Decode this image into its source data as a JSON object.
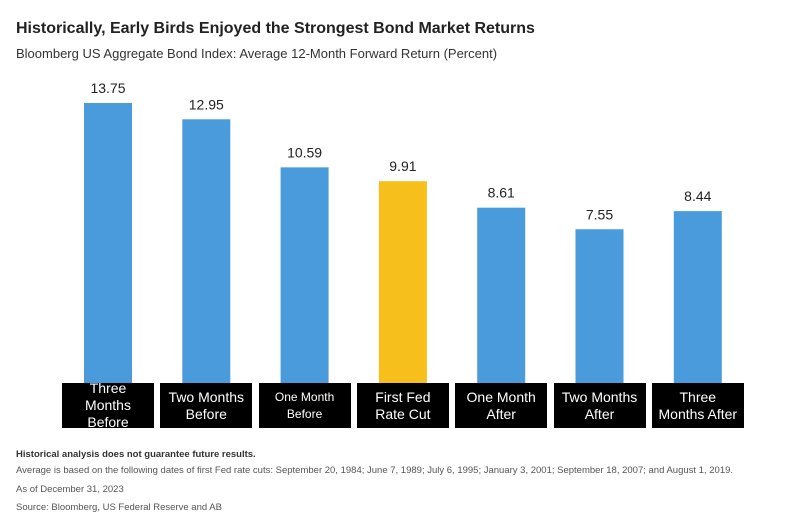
{
  "chart_data": {
    "type": "bar",
    "title": "Historically, Early Birds Enjoyed the Strongest Bond Market Returns",
    "subtitle": "Bloomberg US Aggregate Bond Index: Average 12-Month Forward Return (Percent)",
    "categories": [
      "Three Months Before",
      "Two Months Before",
      "One Month Before",
      "First Fed Rate Cut",
      "One Month After",
      "Two Months After",
      "Three Months After"
    ],
    "values": [
      13.75,
      12.95,
      10.59,
      9.91,
      8.61,
      7.55,
      8.44
    ],
    "colors": [
      "#4a9bdb",
      "#4a9bdb",
      "#4a9bdb",
      "#f6bf1c",
      "#4a9bdb",
      "#4a9bdb",
      "#4a9bdb"
    ],
    "notes": [
      "Historical analysis does not guarantee future results.",
      "Average is based on the following dates of first Fed rate cuts: September 20, 1984; June 7, 1989; July 6, 1995; January 3, 2001; September 18, 2007; and August 1, 2019.",
      "As of December 31, 2023",
      "Source: Bloomberg, US Federal Reserve and AB"
    ]
  }
}
